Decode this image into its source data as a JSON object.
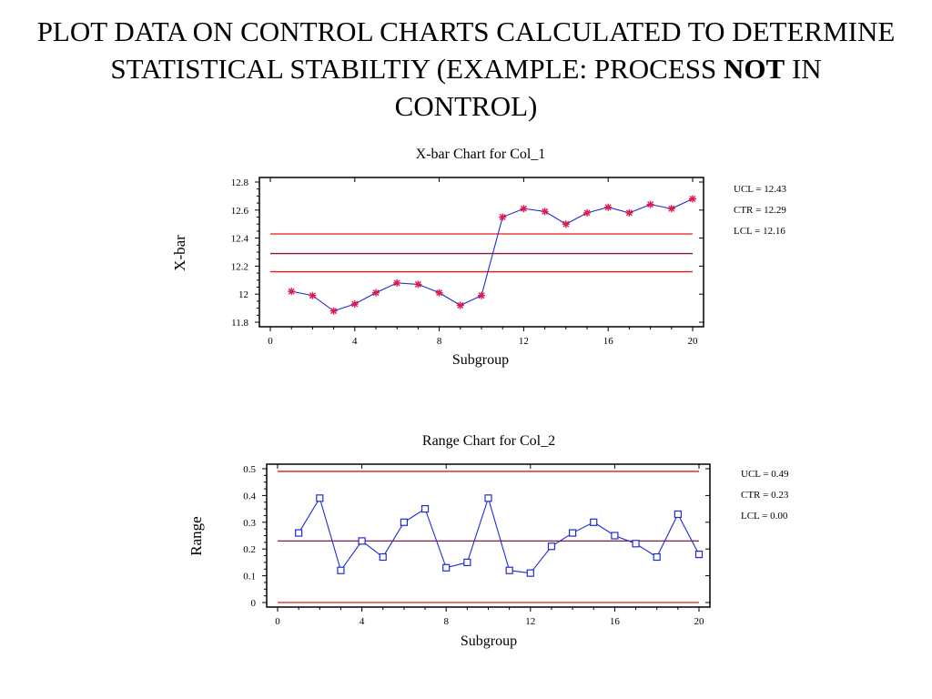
{
  "slide": {
    "title_part1": "PLOT DATA ON CONTROL CHARTS CALCULATED TO DETERMINE STATISTICAL STABILTIY (EXAMPLE: PROCESS ",
    "title_bold": "NOT",
    "title_part2": " IN CONTROL)"
  },
  "chart_data": [
    {
      "type": "line",
      "title": "X-bar Chart for Col_1",
      "xlabel": "Subgroup",
      "ylabel": "X-bar",
      "xlim": [
        0,
        20
      ],
      "ylim": [
        11.8,
        12.8
      ],
      "x_ticks": [
        "0",
        "4",
        "8",
        "12",
        "16",
        "20"
      ],
      "y_ticks": [
        "11.8",
        "12",
        "12.2",
        "12.4",
        "12.6",
        "12.8"
      ],
      "x": [
        1,
        2,
        3,
        4,
        5,
        6,
        7,
        8,
        9,
        10,
        11,
        12,
        13,
        14,
        15,
        16,
        17,
        18,
        19,
        20
      ],
      "values": [
        12.02,
        11.99,
        11.88,
        11.93,
        12.01,
        12.08,
        12.07,
        12.01,
        11.92,
        11.99,
        12.55,
        12.61,
        12.59,
        12.5,
        12.58,
        12.62,
        12.58,
        12.64,
        12.61,
        12.68
      ],
      "marker": "asterisk",
      "line_color": "#1f2bd6",
      "marker_color": "#e0194a",
      "limits": [
        {
          "label": "UCL = 12.43",
          "value": 12.43,
          "color": "#e01b1b"
        },
        {
          "label": "CTR = 12.29",
          "value": 12.29,
          "color": "#7a1d4a"
        },
        {
          "label": "LCL = 12.16",
          "value": 12.16,
          "color": "#e01b1b"
        }
      ]
    },
    {
      "type": "line",
      "title": "Range Chart for Col_2",
      "xlabel": "Subgroup",
      "ylabel": "Range",
      "xlim": [
        0,
        20
      ],
      "ylim": [
        0,
        0.5
      ],
      "x_ticks": [
        "0",
        "4",
        "8",
        "12",
        "16",
        "20"
      ],
      "y_ticks": [
        "0",
        "0.1",
        "0.2",
        "0.3",
        "0.4",
        "0.5"
      ],
      "x": [
        1,
        2,
        3,
        4,
        5,
        6,
        7,
        8,
        9,
        10,
        11,
        12,
        13,
        14,
        15,
        16,
        17,
        18,
        19,
        20
      ],
      "values": [
        0.26,
        0.39,
        0.12,
        0.23,
        0.17,
        0.3,
        0.35,
        0.13,
        0.15,
        0.39,
        0.12,
        0.11,
        0.21,
        0.26,
        0.3,
        0.25,
        0.22,
        0.17,
        0.33,
        0.18
      ],
      "marker": "square",
      "line_color": "#1f2bd6",
      "marker_color": "#1f2bd6",
      "limits": [
        {
          "label": "UCL = 0.49",
          "value": 0.49,
          "color": "#e01b1b"
        },
        {
          "label": "CTR = 0.23",
          "value": 0.23,
          "color": "#7a1d4a"
        },
        {
          "label": "LCL = 0.00",
          "value": 0.0,
          "color": "#e01b1b"
        }
      ]
    }
  ]
}
